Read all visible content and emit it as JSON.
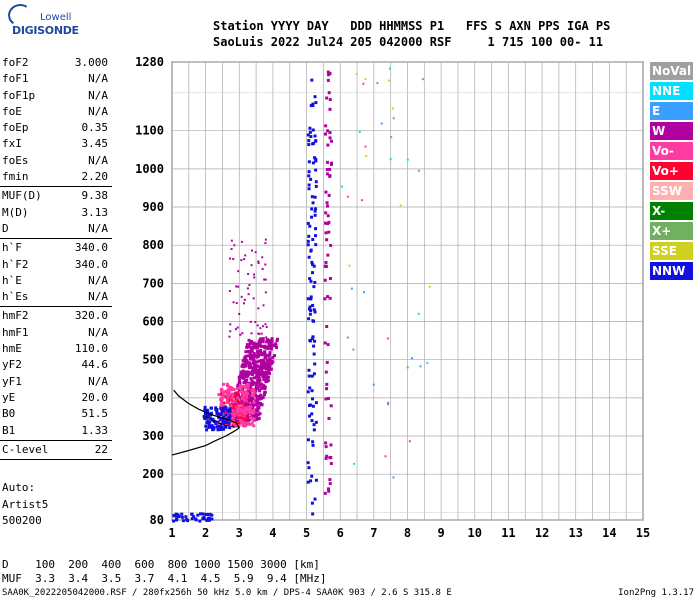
{
  "logo": {
    "line1": "Lowell",
    "line2": "DIGISONDE"
  },
  "header": {
    "row1": "Station YYYY DAY   DDD HHMMSS P1   FFS S AXN PPS IGA PS",
    "row2": "SaoLuis 2022 Jul24 205 042000 RSF     1 715 100 00- 11"
  },
  "params": [
    {
      "name": "foF2",
      "value": "3.000"
    },
    {
      "name": "foF1",
      "value": "N/A"
    },
    {
      "name": "foF1p",
      "value": "N/A"
    },
    {
      "name": "foE",
      "value": "N/A"
    },
    {
      "name": "foEp",
      "value": "0.35"
    },
    {
      "name": "fxI",
      "value": "3.45"
    },
    {
      "name": "foEs",
      "value": "N/A"
    },
    {
      "name": "fmin",
      "value": "2.20"
    },
    {
      "name": "MUF(D)",
      "value": "9.38"
    },
    {
      "name": "M(D)",
      "value": "3.13"
    },
    {
      "name": "D",
      "value": "N/A"
    },
    {
      "name": "h`F",
      "value": "340.0"
    },
    {
      "name": "h`F2",
      "value": "340.0"
    },
    {
      "name": "h`E",
      "value": "N/A"
    },
    {
      "name": "h`Es",
      "value": "N/A"
    },
    {
      "name": "hmF2",
      "value": "320.0"
    },
    {
      "name": "hmF1",
      "value": "N/A"
    },
    {
      "name": "hmE",
      "value": "110.0"
    },
    {
      "name": "yF2",
      "value": "44.6"
    },
    {
      "name": "yF1",
      "value": "N/A"
    },
    {
      "name": "yE",
      "value": "20.0"
    },
    {
      "name": "B0",
      "value": "51.5"
    },
    {
      "name": "B1",
      "value": "1.33"
    },
    {
      "name": "C-level",
      "value": "22"
    }
  ],
  "auto": {
    "l1": "Auto:",
    "l2": "Artist5",
    "l3": "500200"
  },
  "legend": [
    {
      "label": "NoVal",
      "color": "#a0a0a0"
    },
    {
      "label": "NNE",
      "color": "#00e0ff"
    },
    {
      "label": "E",
      "color": "#3aa0ff"
    },
    {
      "label": "W",
      "color": "#b000a0"
    },
    {
      "label": "Vo-",
      "color": "#ff3aa0"
    },
    {
      "label": "Vo+",
      "color": "#ff0030"
    },
    {
      "label": "SSW",
      "color": "#ffb0b0"
    },
    {
      "label": "X-",
      "color": "#008000"
    },
    {
      "label": "X+",
      "color": "#70b060"
    },
    {
      "label": "SSE",
      "color": "#d0d020"
    },
    {
      "label": "NNW",
      "color": "#1010e0"
    }
  ],
  "bottom": {
    "row1": "D    100  200  400  600  800 1000 1500 3000 [km]",
    "row2": "MUF  3.3  3.4  3.5  3.7  4.1  4.5  5.9  9.4 [MHz]"
  },
  "footer": {
    "left": "SAA0K_2022205042000.RSF / 280fx256h 50 kHz 5.0 km / DPS-4 SAA0K 903 / 2.6 S 315.8 E",
    "right": "Ion2Png 1.3.17"
  },
  "chart_data": {
    "type": "scatter",
    "title": "",
    "xlabel": "",
    "ylabel": "",
    "xlim": [
      1,
      15
    ],
    "ylim": [
      80,
      1280
    ],
    "x_ticks": [
      1,
      2,
      3,
      4,
      5,
      6,
      7,
      8,
      9,
      10,
      11,
      12,
      13,
      14,
      15
    ],
    "y_ticks": [
      80,
      200,
      300,
      400,
      500,
      600,
      700,
      800,
      900,
      1000,
      1100,
      1280
    ],
    "grid": true,
    "trace_curve": {
      "name": "",
      "x": [
        1.0,
        1.5,
        2.0,
        2.3,
        2.6,
        2.8,
        2.95,
        3.0,
        2.9,
        2.6,
        2.2,
        1.8,
        1.5,
        1.2,
        1.05
      ],
      "y": [
        250,
        262,
        275,
        288,
        300,
        310,
        318,
        322,
        335,
        345,
        355,
        370,
        385,
        405,
        420
      ]
    },
    "profile_curve": {
      "x": [
        2.0,
        2.2,
        2.5,
        2.8,
        3.0
      ],
      "y": [
        352,
        340,
        330,
        324,
        322
      ]
    },
    "clusters": [
      {
        "name": "F2 trace W",
        "color": "#b000a0",
        "x_range": [
          2.9,
          4.2
        ],
        "y_range": [
          340,
          560
        ]
      },
      {
        "name": "Vo+ trace",
        "color": "#ff0030",
        "x_range": [
          2.4,
          3.2
        ],
        "y_range": [
          330,
          420
        ]
      },
      {
        "name": "Vo- trace",
        "color": "#ff3aa0",
        "x_range": [
          2.3,
          3.4
        ],
        "y_range": [
          330,
          440
        ]
      },
      {
        "name": "low trace NNW",
        "color": "#1010e0",
        "x_range": [
          1.9,
          2.7
        ],
        "y_range": [
          320,
          380
        ]
      },
      {
        "name": "multihop NNW",
        "color": "#1010e0",
        "x_range": [
          5.0,
          5.25
        ],
        "y_range": [
          80,
          1240
        ]
      },
      {
        "name": "multihop W",
        "color": "#b000a0",
        "x_range": [
          5.5,
          5.7
        ],
        "y_range": [
          150,
          1260
        ]
      },
      {
        "name": "ground NNW",
        "color": "#1010e0",
        "x_range": [
          1.0,
          2.2
        ],
        "y_range": [
          80,
          100
        ]
      }
    ]
  }
}
